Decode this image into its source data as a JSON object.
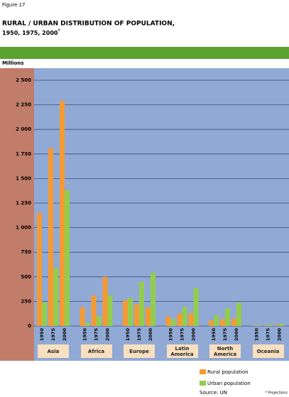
{
  "figure_label": "Figure 17",
  "chart_data": {
    "type": "grouped-bar",
    "title": "RURAL / URBAN DISTRIBUTION OF POPULATION,",
    "subtitle": "1950, 1975, 2000",
    "subtitle_note": "*",
    "y_label": "Millions",
    "groups": [
      "Asia",
      "Africa",
      "Europe",
      "Latin America",
      "North America",
      "Oceania"
    ],
    "categories": [
      "1950",
      "1975",
      "2000",
      "1950",
      "1975",
      "2000",
      "1950",
      "1975",
      "2000",
      "1950",
      "1975",
      "2000",
      "1950",
      "1975",
      "2000",
      "1950",
      "1975",
      "2000"
    ],
    "series": [
      {
        "name": "Rural population",
        "color": "#f59a32",
        "values": [
          1150,
          1810,
          2290,
          190,
          310,
          500,
          260,
          220,
          190,
          95,
          125,
          130,
          55,
          70,
          75,
          5,
          7,
          9
        ]
      },
      {
        "name": "Urban population",
        "color": "#93cd4c",
        "values": [
          240,
          590,
          1380,
          30,
          100,
          310,
          285,
          450,
          540,
          70,
          195,
          385,
          110,
          180,
          235,
          8,
          14,
          20
        ]
      }
    ],
    "ylim": [
      0,
      2500
    ],
    "yticks": [
      0,
      250,
      500,
      750,
      {
        "value": 1000,
        "label": "1 000"
      },
      {
        "value": 1250,
        "label": "1 250"
      },
      {
        "value": 1500,
        "label": "1 500"
      },
      {
        "value": 1750,
        "label": "1 750"
      },
      {
        "value": 2000,
        "label": "2 000"
      },
      {
        "value": 2250,
        "label": "2 250"
      },
      {
        "value": 2500,
        "label": "2 500"
      }
    ],
    "grid": true,
    "source": "Source: UN",
    "footnote": "* Projections"
  }
}
